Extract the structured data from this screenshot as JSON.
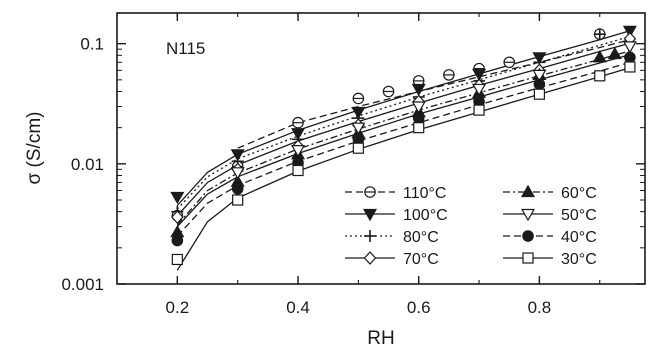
{
  "chart_data": {
    "type": "scatter",
    "title": "",
    "panel_label": "N115",
    "xlabel": "RH",
    "ylabel": "σ (S/cm)",
    "xlim": [
      0.1,
      0.975
    ],
    "ylim": [
      0.001,
      0.18
    ],
    "yscale": "log",
    "grid": false,
    "legend_position": "bottom-right",
    "x_ticks": [
      0.2,
      0.4,
      0.6,
      0.8
    ],
    "x_tick_labels": [
      "0.2",
      "0.4",
      "0.6",
      "0.8"
    ],
    "y_ticks": [
      0.001,
      0.01,
      0.1
    ],
    "y_tick_labels": [
      "0.001",
      "0.01",
      "0.1"
    ],
    "series": [
      {
        "name": "110°C",
        "marker": "circle-bar",
        "line": "dashed",
        "x": [
          0.2,
          0.3,
          0.4,
          0.5,
          0.55,
          0.6,
          0.65,
          0.7,
          0.75,
          0.9
        ],
        "y": [
          0.0037,
          0.0095,
          0.022,
          0.035,
          0.04,
          0.049,
          0.055,
          0.062,
          0.07,
          0.12
        ],
        "fit_x": [
          0.3,
          0.4,
          0.5,
          0.6,
          0.7,
          0.8,
          0.9,
          0.95
        ],
        "fit_y": [
          0.0135,
          0.022,
          0.03,
          0.04,
          0.053,
          0.07,
          0.093,
          0.108
        ]
      },
      {
        "name": "100°C",
        "marker": "triangle-down-filled",
        "line": "solid",
        "x": [
          0.2,
          0.3,
          0.4,
          0.5,
          0.6,
          0.7,
          0.8,
          0.95
        ],
        "y": [
          0.0053,
          0.012,
          0.018,
          0.027,
          0.042,
          0.056,
          0.077,
          0.128
        ],
        "fit_x": [
          0.2,
          0.25,
          0.3,
          0.4,
          0.5,
          0.6,
          0.7,
          0.8,
          0.9,
          0.95
        ],
        "fit_y": [
          0.0045,
          0.0085,
          0.012,
          0.019,
          0.028,
          0.04,
          0.056,
          0.078,
          0.108,
          0.128
        ]
      },
      {
        "name": "80°C",
        "marker": "plus",
        "line": "dotted",
        "x": [
          0.2,
          0.3,
          0.4,
          0.5,
          0.6,
          0.7,
          0.8,
          0.9
        ],
        "y": [
          0.004,
          0.0105,
          0.016,
          0.024,
          0.036,
          0.049,
          0.07,
          0.12
        ],
        "fit_x": [
          0.2,
          0.25,
          0.3,
          0.4,
          0.5,
          0.6,
          0.7,
          0.8,
          0.9,
          0.95
        ],
        "fit_y": [
          0.0042,
          0.0078,
          0.011,
          0.017,
          0.025,
          0.036,
          0.05,
          0.07,
          0.097,
          0.115
        ]
      },
      {
        "name": "70°C",
        "marker": "diamond",
        "line": "solid",
        "x": [
          0.2,
          0.3,
          0.4,
          0.5,
          0.6,
          0.7,
          0.8,
          0.95
        ],
        "y": [
          0.0036,
          0.009,
          0.014,
          0.021,
          0.033,
          0.045,
          0.06,
          0.11
        ],
        "fit_x": [
          0.2,
          0.25,
          0.3,
          0.4,
          0.5,
          0.6,
          0.7,
          0.8,
          0.9,
          0.95
        ],
        "fit_y": [
          0.0037,
          0.007,
          0.0098,
          0.0155,
          0.0225,
          0.032,
          0.045,
          0.062,
          0.086,
          0.101
        ]
      },
      {
        "name": "60°C",
        "marker": "triangle-up-filled",
        "line": "dashdot",
        "x": [
          0.2,
          0.3,
          0.4,
          0.5,
          0.6,
          0.7,
          0.8,
          0.9,
          0.925
        ],
        "y": [
          0.0027,
          0.0071,
          0.012,
          0.018,
          0.027,
          0.039,
          0.055,
          0.077,
          0.082
        ],
        "fit_x": [
          0.2,
          0.25,
          0.3,
          0.4,
          0.5,
          0.6,
          0.7,
          0.8,
          0.9,
          0.95
        ],
        "fit_y": [
          0.0031,
          0.006,
          0.0084,
          0.0133,
          0.0195,
          0.028,
          0.039,
          0.054,
          0.074,
          0.087
        ]
      },
      {
        "name": "50°C",
        "marker": "triangle-down",
        "line": "solid",
        "x": [
          0.3,
          0.4,
          0.5,
          0.6,
          0.7,
          0.8,
          0.95
        ],
        "y": [
          0.0085,
          0.013,
          0.02,
          0.03,
          0.042,
          0.055,
          0.095
        ],
        "fit_x": [
          0.2,
          0.25,
          0.3,
          0.4,
          0.5,
          0.6,
          0.7,
          0.8,
          0.9,
          0.95
        ],
        "fit_y": [
          0.003,
          0.0056,
          0.0078,
          0.0122,
          0.018,
          0.026,
          0.036,
          0.05,
          0.069,
          0.081
        ]
      },
      {
        "name": "40°C",
        "marker": "circle-filled",
        "line": "dashed",
        "x": [
          0.2,
          0.3,
          0.4,
          0.5,
          0.6,
          0.7,
          0.8,
          0.95
        ],
        "y": [
          0.0023,
          0.0062,
          0.0102,
          0.016,
          0.024,
          0.033,
          0.046,
          0.077
        ],
        "fit_x": [
          0.2,
          0.25,
          0.3,
          0.4,
          0.5,
          0.6,
          0.7,
          0.8,
          0.9,
          0.95
        ],
        "fit_y": [
          0.0025,
          0.0047,
          0.0066,
          0.0105,
          0.0155,
          0.022,
          0.031,
          0.043,
          0.059,
          0.07
        ]
      },
      {
        "name": "30°C",
        "marker": "square",
        "line": "solid",
        "x": [
          0.2,
          0.3,
          0.4,
          0.5,
          0.6,
          0.7,
          0.8,
          0.9,
          0.95
        ],
        "y": [
          0.0016,
          0.005,
          0.0088,
          0.0135,
          0.02,
          0.028,
          0.038,
          0.054,
          0.064
        ],
        "fit_x": [
          0.2,
          0.25,
          0.3,
          0.4,
          0.5,
          0.6,
          0.7,
          0.8,
          0.9,
          0.95
        ],
        "fit_y": [
          0.0013,
          0.0033,
          0.0052,
          0.0087,
          0.0132,
          0.0192,
          0.027,
          0.038,
          0.053,
          0.063
        ]
      }
    ]
  },
  "colors": {
    "ink": "#1a1a1a",
    "background": "#ffffff"
  }
}
